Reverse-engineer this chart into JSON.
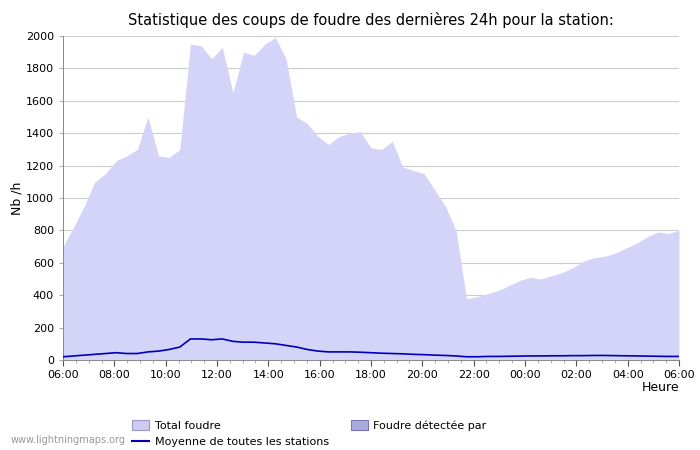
{
  "title": "Statistique des coups de foudre des dernières 24h pour la station:",
  "xlabel": "Heure",
  "ylabel": "Nb /h",
  "ylim": [
    0,
    2000
  ],
  "yticks": [
    0,
    200,
    400,
    600,
    800,
    1000,
    1200,
    1400,
    1600,
    1800,
    2000
  ],
  "xtick_labels": [
    "06:00",
    "08:00",
    "10:00",
    "12:00",
    "14:00",
    "16:00",
    "18:00",
    "20:00",
    "22:00",
    "00:00",
    "02:00",
    "04:00",
    "06:00"
  ],
  "background_color": "#ffffff",
  "plot_bg_color": "#ffffff",
  "grid_color": "#cccccc",
  "fill_color": "#d4d4f8",
  "line_color": "#0000bb",
  "watermark": "www.lightningmaps.org",
  "legend": [
    "Total foudre",
    "Foudre détectée par",
    "Moyenne de toutes les stations"
  ],
  "total_foudre": [
    700,
    820,
    950,
    1100,
    1150,
    1230,
    1260,
    1300,
    1500,
    1260,
    1250,
    1300,
    1950,
    1940,
    1860,
    1930,
    1650,
    1900,
    1880,
    1950,
    1990,
    1860,
    1500,
    1460,
    1380,
    1330,
    1380,
    1400,
    1410,
    1310,
    1300,
    1350,
    1190,
    1170,
    1150,
    1050,
    950,
    800,
    380,
    390,
    410,
    430,
    460,
    490,
    510,
    500,
    520,
    540,
    570,
    610,
    630,
    640,
    660,
    690,
    720,
    760,
    790,
    780,
    800
  ],
  "moyenne": [
    20,
    25,
    30,
    35,
    40,
    45,
    40,
    40,
    50,
    55,
    65,
    80,
    130,
    130,
    125,
    130,
    115,
    110,
    110,
    105,
    100,
    90,
    80,
    65,
    55,
    50,
    50,
    50,
    48,
    45,
    42,
    40,
    38,
    35,
    33,
    30,
    28,
    25,
    20,
    20,
    22,
    22,
    23,
    24,
    25,
    25,
    26,
    26,
    27,
    27,
    28,
    28,
    27,
    26,
    25,
    24,
    23,
    22,
    22
  ]
}
